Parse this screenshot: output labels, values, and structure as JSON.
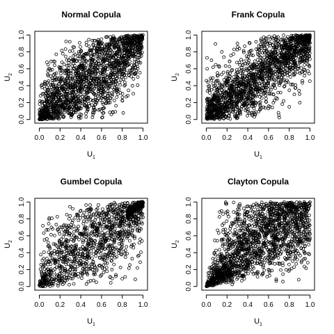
{
  "chart_data": [
    {
      "type": "scatter",
      "title": "Normal Copula",
      "xlabel": "U",
      "xlabel_sub": "1",
      "ylabel": "U",
      "ylabel_sub": "2",
      "xlim": [
        0,
        1
      ],
      "ylim": [
        0,
        1
      ],
      "xticks": [
        "0.0",
        "0.2",
        "0.4",
        "0.6",
        "0.8",
        "1.0"
      ],
      "yticks": [
        "0.0",
        "0.2",
        "0.4",
        "0.6",
        "0.8",
        "1.0"
      ],
      "series": [
        {
          "marker": "open-circle",
          "values": [
            [
              0.05,
              0.1
            ],
            [
              0.1,
              0.02
            ],
            [
              0.15,
              0.3
            ],
            [
              0.2,
              0.15
            ],
            [
              0.25,
              0.35
            ],
            [
              0.3,
              0.2
            ],
            [
              0.35,
              0.45
            ],
            [
              0.4,
              0.3
            ],
            [
              0.45,
              0.55
            ],
            [
              0.5,
              0.4
            ],
            [
              0.55,
              0.6
            ],
            [
              0.6,
              0.45
            ],
            [
              0.65,
              0.7
            ],
            [
              0.7,
              0.55
            ],
            [
              0.75,
              0.8
            ],
            [
              0.8,
              0.65
            ],
            [
              0.85,
              0.9
            ],
            [
              0.9,
              0.75
            ],
            [
              0.95,
              0.98
            ],
            [
              0.02,
              0.4
            ],
            [
              0.4,
              0.02
            ],
            [
              0.6,
              0.95
            ],
            [
              0.95,
              0.6
            ],
            [
              0.1,
              0.6
            ],
            [
              0.6,
              0.1
            ]
          ]
        }
      ]
    },
    {
      "type": "scatter",
      "title": "Frank Copula",
      "xlabel": "U",
      "xlabel_sub": "1",
      "ylabel": "U",
      "ylabel_sub": "2",
      "xlim": [
        0,
        1
      ],
      "ylim": [
        0,
        1
      ],
      "xticks": [
        "0.0",
        "0.2",
        "0.4",
        "0.6",
        "0.8",
        "1.0"
      ],
      "yticks": [
        "0.0",
        "0.2",
        "0.4",
        "0.6",
        "0.8",
        "1.0"
      ],
      "series": [
        {
          "marker": "open-circle",
          "values": [
            [
              0.05,
              0.15
            ],
            [
              0.1,
              0.05
            ],
            [
              0.15,
              0.35
            ],
            [
              0.2,
              0.1
            ],
            [
              0.25,
              0.4
            ],
            [
              0.3,
              0.15
            ],
            [
              0.35,
              0.5
            ],
            [
              0.4,
              0.25
            ],
            [
              0.45,
              0.6
            ],
            [
              0.5,
              0.35
            ],
            [
              0.55,
              0.65
            ],
            [
              0.6,
              0.4
            ],
            [
              0.65,
              0.75
            ],
            [
              0.7,
              0.5
            ],
            [
              0.75,
              0.85
            ],
            [
              0.8,
              0.6
            ],
            [
              0.85,
              0.95
            ],
            [
              0.9,
              0.7
            ],
            [
              0.95,
              0.9
            ],
            [
              0.05,
              0.7
            ],
            [
              0.7,
              0.05
            ],
            [
              0.3,
              0.9
            ],
            [
              0.9,
              0.3
            ],
            [
              0.15,
              0.8
            ],
            [
              0.8,
              0.15
            ]
          ]
        }
      ]
    },
    {
      "type": "scatter",
      "title": "Gumbel Copula",
      "xlabel": "U",
      "xlabel_sub": "1",
      "ylabel": "U",
      "ylabel_sub": "2",
      "xlim": [
        0,
        1
      ],
      "ylim": [
        0,
        1
      ],
      "xticks": [
        "0.0",
        "0.2",
        "0.4",
        "0.6",
        "0.8",
        "1.0"
      ],
      "yticks": [
        "0.0",
        "0.2",
        "0.4",
        "0.6",
        "0.8",
        "1.0"
      ],
      "series": [
        {
          "marker": "open-circle",
          "values": [
            [
              0.05,
              0.1
            ],
            [
              0.1,
              0.03
            ],
            [
              0.15,
              0.3
            ],
            [
              0.2,
              0.12
            ],
            [
              0.25,
              0.35
            ],
            [
              0.3,
              0.2
            ],
            [
              0.35,
              0.45
            ],
            [
              0.4,
              0.3
            ],
            [
              0.45,
              0.55
            ],
            [
              0.5,
              0.42
            ],
            [
              0.55,
              0.6
            ],
            [
              0.6,
              0.5
            ],
            [
              0.65,
              0.7
            ],
            [
              0.7,
              0.6
            ],
            [
              0.75,
              0.8
            ],
            [
              0.8,
              0.72
            ],
            [
              0.85,
              0.88
            ],
            [
              0.9,
              0.84
            ],
            [
              0.95,
              0.95
            ],
            [
              0.99,
              0.99
            ],
            [
              0.05,
              0.55
            ],
            [
              0.55,
              0.05
            ],
            [
              0.2,
              0.7
            ],
            [
              0.7,
              0.2
            ]
          ]
        }
      ]
    },
    {
      "type": "scatter",
      "title": "Clayton Copula",
      "xlabel": "U",
      "xlabel_sub": "1",
      "ylabel": "U",
      "ylabel_sub": "2",
      "xlim": [
        0,
        1
      ],
      "ylim": [
        0,
        1
      ],
      "xticks": [
        "0.0",
        "0.2",
        "0.4",
        "0.6",
        "0.8",
        "1.0"
      ],
      "yticks": [
        "0.0",
        "0.2",
        "0.4",
        "0.6",
        "0.8",
        "1.0"
      ],
      "series": [
        {
          "marker": "open-circle",
          "values": [
            [
              0.01,
              0.01
            ],
            [
              0.03,
              0.02
            ],
            [
              0.05,
              0.06
            ],
            [
              0.08,
              0.05
            ],
            [
              0.1,
              0.12
            ],
            [
              0.15,
              0.1
            ],
            [
              0.2,
              0.25
            ],
            [
              0.25,
              0.2
            ],
            [
              0.3,
              0.4
            ],
            [
              0.35,
              0.3
            ],
            [
              0.4,
              0.55
            ],
            [
              0.45,
              0.4
            ],
            [
              0.5,
              0.65
            ],
            [
              0.55,
              0.5
            ],
            [
              0.6,
              0.75
            ],
            [
              0.65,
              0.6
            ],
            [
              0.7,
              0.85
            ],
            [
              0.75,
              0.7
            ],
            [
              0.8,
              0.95
            ],
            [
              0.9,
              0.8
            ],
            [
              0.95,
              0.98
            ],
            [
              0.2,
              0.6
            ],
            [
              0.6,
              0.2
            ],
            [
              0.4,
              0.95
            ],
            [
              0.95,
              0.4
            ]
          ]
        }
      ]
    }
  ]
}
